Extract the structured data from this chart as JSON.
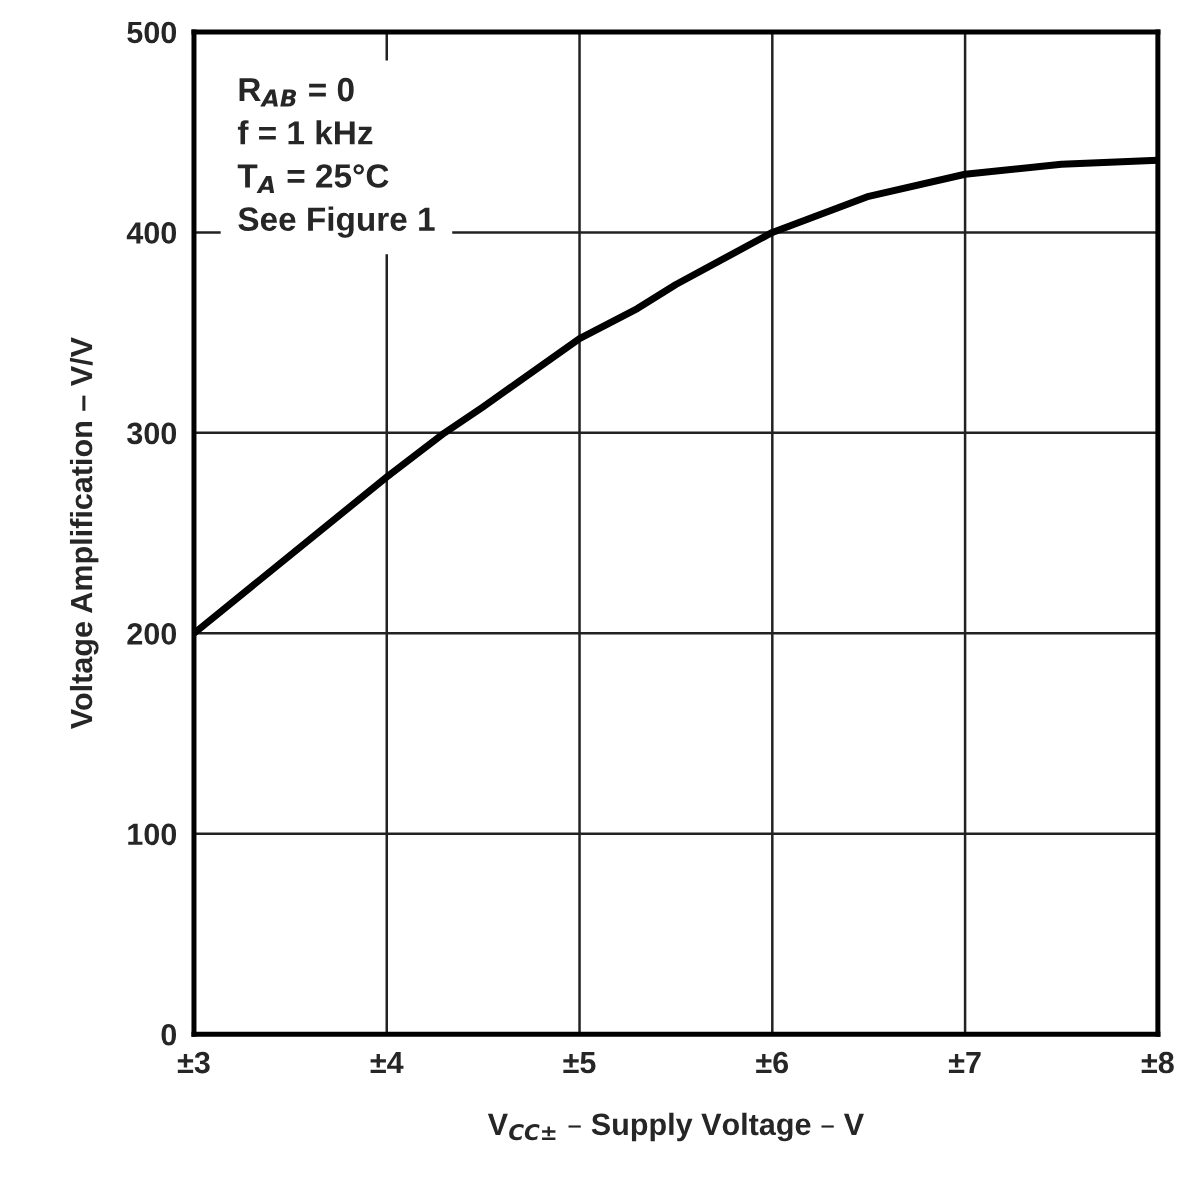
{
  "chart_data": {
    "type": "line",
    "xlabel": "V$_{CC±}$ – Supply Voltage – V",
    "ylabel": "Voltage Amplification – V/V",
    "series": [
      {
        "color": "#000000",
        "x": [
          3,
          3.5,
          4,
          4.3,
          4.5,
          5,
          5.3,
          5.5,
          6,
          6.5,
          7,
          7.5,
          8
        ],
        "values": [
          200,
          239,
          278,
          300,
          313,
          347,
          362,
          374,
          400,
          418,
          429,
          434,
          436
        ]
      }
    ],
    "xlim": [
      3,
      8
    ],
    "xticks": [
      {
        "value": 3,
        "label": "±3"
      },
      {
        "value": 4,
        "label": "±4"
      },
      {
        "value": 5,
        "label": "±5"
      },
      {
        "value": 6,
        "label": "±6"
      },
      {
        "value": 7,
        "label": "±7"
      },
      {
        "value": 8,
        "label": "±8"
      }
    ],
    "ylim": [
      0,
      500
    ],
    "yticks": [
      0,
      100,
      200,
      300,
      400,
      500
    ],
    "grid": true,
    "marker": "none",
    "line_style": "solid",
    "annotations": [
      "R$_{AB}$ = 0",
      "f = 1 kHz",
      "T$_{A}$ = 25°C",
      "See Figure 1"
    ]
  }
}
